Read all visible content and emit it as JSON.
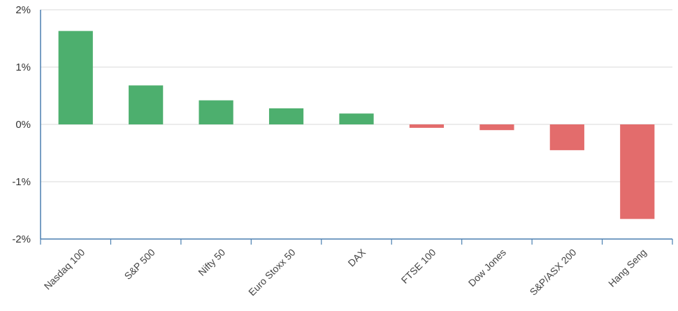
{
  "chart_data": {
    "type": "bar",
    "categories": [
      "Nasdaq 100",
      "S&P 500",
      "Nifty 50",
      "Euro Stoxx 50",
      "DAX",
      "FTSE 100",
      "Dow Jones",
      "S&P/ASX 200",
      "Hang Seng"
    ],
    "values": [
      1.63,
      0.68,
      0.42,
      0.28,
      0.19,
      -0.06,
      -0.1,
      -0.45,
      -1.65
    ],
    "ylim": [
      -2,
      2
    ],
    "yticks": [
      2,
      1,
      0,
      -1,
      -2
    ],
    "ytick_labels": [
      "2%",
      "1%",
      "0%",
      "-1%",
      "-2%"
    ],
    "grid": true,
    "colors": {
      "positive": "#4daf6e",
      "negative": "#e36c6c",
      "axis": "#4a7fb0",
      "grid": "#d9d9d9"
    }
  }
}
